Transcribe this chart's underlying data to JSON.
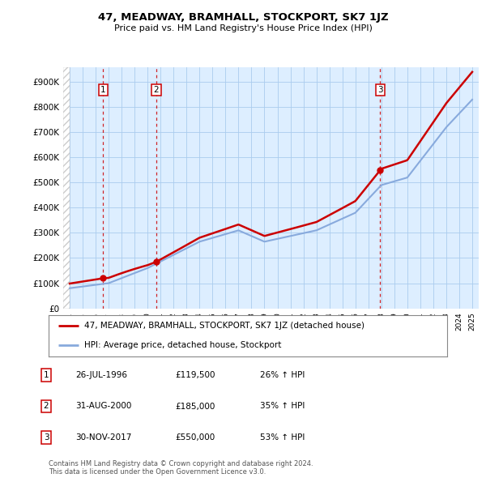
{
  "title": "47, MEADWAY, BRAMHALL, STOCKPORT, SK7 1JZ",
  "subtitle": "Price paid vs. HM Land Registry's House Price Index (HPI)",
  "ylabel_ticks": [
    "£0",
    "£100K",
    "£200K",
    "£300K",
    "£400K",
    "£500K",
    "£600K",
    "£700K",
    "£800K",
    "£900K"
  ],
  "ytick_values": [
    0,
    100000,
    200000,
    300000,
    400000,
    500000,
    600000,
    700000,
    800000,
    900000
  ],
  "ylim": [
    0,
    960000
  ],
  "xlim_start": 1993.5,
  "xlim_end": 2025.5,
  "sale_dates": [
    1996.57,
    2000.67,
    2017.92
  ],
  "sale_prices": [
    119500,
    185000,
    550000
  ],
  "sale_labels": [
    "1",
    "2",
    "3"
  ],
  "hpi_color": "#88aadd",
  "price_color": "#cc0000",
  "dashed_line_color": "#cc0000",
  "grid_color": "#aaccee",
  "legend_label_price": "47, MEADWAY, BRAMHALL, STOCKPORT, SK7 1JZ (detached house)",
  "legend_label_hpi": "HPI: Average price, detached house, Stockport",
  "table_rows": [
    [
      "1",
      "26-JUL-1996",
      "£119,500",
      "26% ↑ HPI"
    ],
    [
      "2",
      "31-AUG-2000",
      "£185,000",
      "35% ↑ HPI"
    ],
    [
      "3",
      "30-NOV-2017",
      "£550,000",
      "53% ↑ HPI"
    ]
  ],
  "footer": "Contains HM Land Registry data © Crown copyright and database right 2024.\nThis data is licensed under the Open Government Licence v3.0.",
  "background_color": "#ffffff",
  "plot_bg_color": "#ddeeff"
}
